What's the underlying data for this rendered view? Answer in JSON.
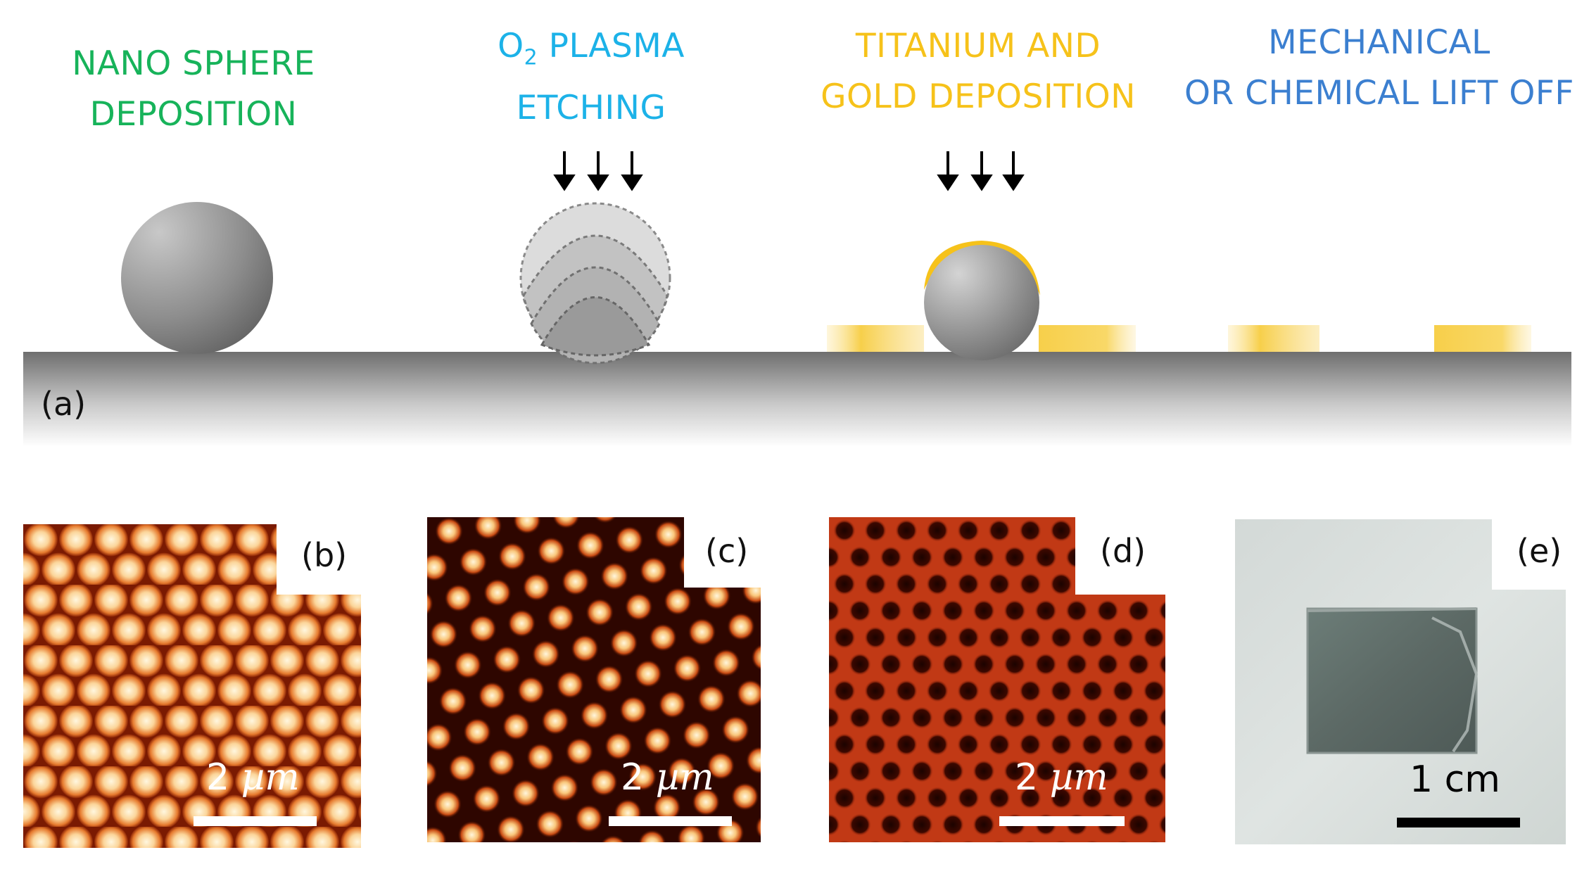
{
  "steps": [
    {
      "line1": "NANO SPHERE",
      "line2": "DEPOSITION",
      "color": "#17b35a"
    },
    {
      "line1": "O",
      "line1_sub": "2",
      "line1_rest": " PLASMA",
      "line2": "ETCHING",
      "color": "#1cb2e8"
    },
    {
      "line1": "TITANIUM AND",
      "line2": "GOLD DEPOSITION",
      "color": "#f6c21a"
    },
    {
      "line1": "MECHANICAL",
      "line2": "OR CHEMICAL LIFT OFF",
      "color": "#3b7fd0"
    }
  ],
  "panels": {
    "a": "(a)",
    "b": "(b)",
    "c": "(c)",
    "d": "(d)",
    "e": "(e)"
  },
  "scale_bars": {
    "b": {
      "number": "2",
      "unit": "µm"
    },
    "c": {
      "number": "2",
      "unit": "µm"
    },
    "d": {
      "number": "2",
      "unit": "µm"
    },
    "e": {
      "text": "1 cm"
    }
  },
  "colors": {
    "sphere": "#8a8a8a",
    "gold": "#f6c21a",
    "substrate_top": "#6f6f6f",
    "afm_dark": "#2a0600",
    "afm_bright": "#fff2d0",
    "afm_red": "#c53a16",
    "sample_glass": "#d6dcda",
    "sample_film": "#5f6b67"
  }
}
